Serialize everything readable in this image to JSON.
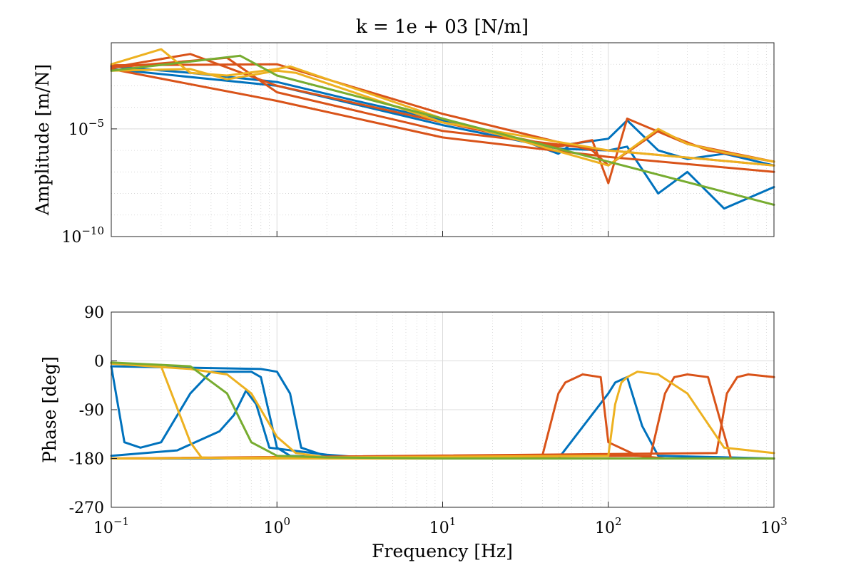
{
  "chart_data": [
    {
      "id": "amplitude",
      "type": "line",
      "title": "k = 1e + 03 [N/m]",
      "xlabel": "",
      "ylabel": "Amplitude [m/N]",
      "xscale": "log",
      "yscale": "log",
      "xlim": [
        0.1,
        1000
      ],
      "ylim": [
        1e-10,
        0.1
      ],
      "x_ticks": [
        {
          "base": "10",
          "exp": "−1",
          "value": 0.1
        },
        {
          "base": "10",
          "exp": "0",
          "value": 1
        },
        {
          "base": "10",
          "exp": "1",
          "value": 10
        },
        {
          "base": "10",
          "exp": "2",
          "value": 100
        },
        {
          "base": "10",
          "exp": "3",
          "value": 1000
        }
      ],
      "y_ticks": [
        {
          "base": "10",
          "exp": "−5",
          "value": 1e-05
        },
        {
          "base": "10",
          "exp": "−10",
          "value": 1e-10
        }
      ],
      "grid": true,
      "series": [
        {
          "name": "blue-1",
          "color": "#0072BD",
          "x": [
            0.1,
            0.3,
            1,
            3,
            10,
            30,
            50,
            60,
            100,
            130,
            200,
            300,
            500,
            1000
          ],
          "y": [
            0.008,
            0.004,
            0.0015,
            0.0002,
            2.5e-05,
            3e-06,
            7e-07,
            2e-06,
            3.5e-06,
            2.5e-05,
            1e-06,
            4e-07,
            7e-07,
            2e-07
          ]
        },
        {
          "name": "blue-2",
          "color": "#0072BD",
          "x": [
            0.1,
            1,
            10,
            50,
            100,
            130,
            200,
            300,
            500,
            1000
          ],
          "y": [
            0.006,
            0.001,
            1.5e-05,
            1.2e-06,
            1e-06,
            1.5e-06,
            1e-08,
            1e-07,
            2e-09,
            2e-08
          ]
        },
        {
          "name": "orange-1",
          "color": "#D95319",
          "x": [
            0.1,
            0.3,
            1,
            10,
            50,
            80,
            100,
            130,
            300,
            1000
          ],
          "y": [
            0.007,
            0.03,
            0.001,
            2e-05,
            1.5e-06,
            3e-06,
            3e-08,
            3e-05,
            2e-06,
            3e-07
          ]
        },
        {
          "name": "orange-2",
          "color": "#D95319",
          "x": [
            0.1,
            1,
            10,
            80,
            100,
            200,
            400,
            1000
          ],
          "y": [
            0.009,
            0.01,
            5e-05,
            1e-06,
            2e-07,
            8e-06,
            1e-06,
            3e-07
          ]
        },
        {
          "name": "orange-3",
          "color": "#D95319",
          "x": [
            0.1,
            0.5,
            1,
            10,
            100,
            1000
          ],
          "y": [
            0.007,
            0.02,
            0.0005,
            8e-06,
            1e-06,
            2e-07
          ]
        },
        {
          "name": "orange-4",
          "color": "#D95319",
          "x": [
            0.1,
            1,
            10,
            100,
            1000
          ],
          "y": [
            0.006,
            0.0002,
            4e-06,
            5e-07,
            1e-07
          ]
        },
        {
          "name": "yellow-1",
          "color": "#EDB120",
          "x": [
            0.1,
            0.2,
            0.3,
            0.5,
            1,
            1.2,
            10,
            100,
            200,
            300,
            500,
            1000
          ],
          "y": [
            0.01,
            0.05,
            0.004,
            0.003,
            0.006,
            0.008,
            3e-05,
            2e-07,
            1e-05,
            2e-06,
            8e-07,
            3e-07
          ]
        },
        {
          "name": "yellow-2",
          "color": "#EDB120",
          "x": [
            0.1,
            0.3,
            0.5,
            1,
            1.3,
            10,
            100,
            1000
          ],
          "y": [
            0.005,
            0.006,
            0.002,
            0.005,
            0.004,
            2e-05,
            1e-06,
            2e-07
          ]
        },
        {
          "name": "green-1",
          "color": "#77AC30",
          "x": [
            0.1,
            0.6,
            1,
            10,
            100,
            1000
          ],
          "y": [
            0.005,
            0.025,
            0.003,
            3e-05,
            3e-07,
            3e-09
          ]
        }
      ]
    },
    {
      "id": "phase",
      "type": "line",
      "title": "",
      "xlabel": "Frequency [Hz]",
      "ylabel": "Phase [deg]",
      "xscale": "log",
      "yscale": "linear",
      "xlim": [
        0.1,
        1000
      ],
      "ylim": [
        -270,
        90
      ],
      "x_ticks": [
        {
          "base": "10",
          "exp": "−1",
          "value": 0.1
        },
        {
          "base": "10",
          "exp": "0",
          "value": 1
        },
        {
          "base": "10",
          "exp": "1",
          "value": 10
        },
        {
          "base": "10",
          "exp": "2",
          "value": 100
        },
        {
          "base": "10",
          "exp": "3",
          "value": 1000
        }
      ],
      "y_ticks": [
        {
          "label": "90",
          "value": 90
        },
        {
          "label": "0",
          "value": 0
        },
        {
          "label": "-90",
          "value": -90
        },
        {
          "label": "-180",
          "value": -180
        },
        {
          "label": "-270",
          "value": -270
        }
      ],
      "grid": true,
      "series": [
        {
          "name": "blue-1",
          "color": "#0072BD",
          "x": [
            0.1,
            0.12,
            0.15,
            0.2,
            0.3,
            0.4,
            0.5,
            0.6,
            0.7,
            0.8,
            1,
            1.2,
            2,
            5,
            100,
            1000
          ],
          "y": [
            -10,
            -150,
            -160,
            -150,
            -60,
            -20,
            -20,
            -20,
            -20,
            -30,
            -160,
            -175,
            -178,
            -180,
            -180,
            -180
          ]
        },
        {
          "name": "blue-2",
          "color": "#0072BD",
          "x": [
            0.1,
            0.25,
            0.45,
            0.55,
            0.65,
            0.75,
            0.9,
            2,
            3,
            10,
            100,
            1000
          ],
          "y": [
            -175,
            -165,
            -130,
            -100,
            -55,
            -80,
            -160,
            -173,
            -177,
            -180,
            -180,
            -180
          ]
        },
        {
          "name": "blue-3",
          "color": "#0072BD",
          "x": [
            0.1,
            0.8,
            1,
            1.2,
            1.4,
            2,
            3,
            10,
            100,
            1000
          ],
          "y": [
            -10,
            -15,
            -20,
            -60,
            -160,
            -176,
            -178,
            -180,
            -180,
            -180
          ]
        },
        {
          "name": "blue-hf",
          "color": "#0072BD",
          "x": [
            0.1,
            50,
            100,
            110,
            130,
            160,
            200,
            1000
          ],
          "y": [
            -180,
            -180,
            -60,
            -40,
            -30,
            -120,
            -175,
            -180
          ]
        },
        {
          "name": "orange-hf-1",
          "color": "#D95319",
          "x": [
            0.1,
            40,
            50,
            55,
            70,
            90,
            100,
            150,
            220,
            1000
          ],
          "y": [
            -180,
            -175,
            -60,
            -40,
            -25,
            -30,
            -150,
            -175,
            -180,
            -180
          ]
        },
        {
          "name": "orange-hf-2",
          "color": "#D95319",
          "x": [
            0.1,
            180,
            220,
            250,
            300,
            400,
            550,
            1000
          ],
          "y": [
            -180,
            -175,
            -60,
            -30,
            -25,
            -30,
            -180,
            -180
          ]
        },
        {
          "name": "orange-hf-3",
          "color": "#D95319",
          "x": [
            0.1,
            450,
            520,
            600,
            700,
            1000
          ],
          "y": [
            -180,
            -170,
            -60,
            -30,
            -25,
            -30
          ]
        },
        {
          "name": "yellow-1",
          "color": "#EDB120",
          "x": [
            0.1,
            0.2,
            0.3,
            0.35,
            0.5,
            1,
            10,
            100,
            1000
          ],
          "y": [
            -5,
            -10,
            -150,
            -178,
            -180,
            -180,
            -180,
            -180,
            -180
          ]
        },
        {
          "name": "yellow-2",
          "color": "#EDB120",
          "x": [
            0.1,
            0.3,
            0.5,
            0.7,
            1,
            1.3,
            2,
            10,
            100,
            1000
          ],
          "y": [
            -5,
            -15,
            -25,
            -60,
            -140,
            -170,
            -178,
            -180,
            -180,
            -180
          ]
        },
        {
          "name": "yellow-hf",
          "color": "#EDB120",
          "x": [
            0.1,
            100,
            110,
            120,
            130,
            150,
            200,
            300,
            500,
            1000
          ],
          "y": [
            -180,
            -175,
            -80,
            -40,
            -30,
            -20,
            -25,
            -60,
            -160,
            -170
          ]
        },
        {
          "name": "green-1",
          "color": "#77AC30",
          "x": [
            0.1,
            0.3,
            0.5,
            0.7,
            1,
            2,
            10,
            100,
            1000
          ],
          "y": [
            -3,
            -10,
            -60,
            -150,
            -175,
            -178,
            -180,
            -180,
            -180
          ]
        }
      ]
    }
  ]
}
